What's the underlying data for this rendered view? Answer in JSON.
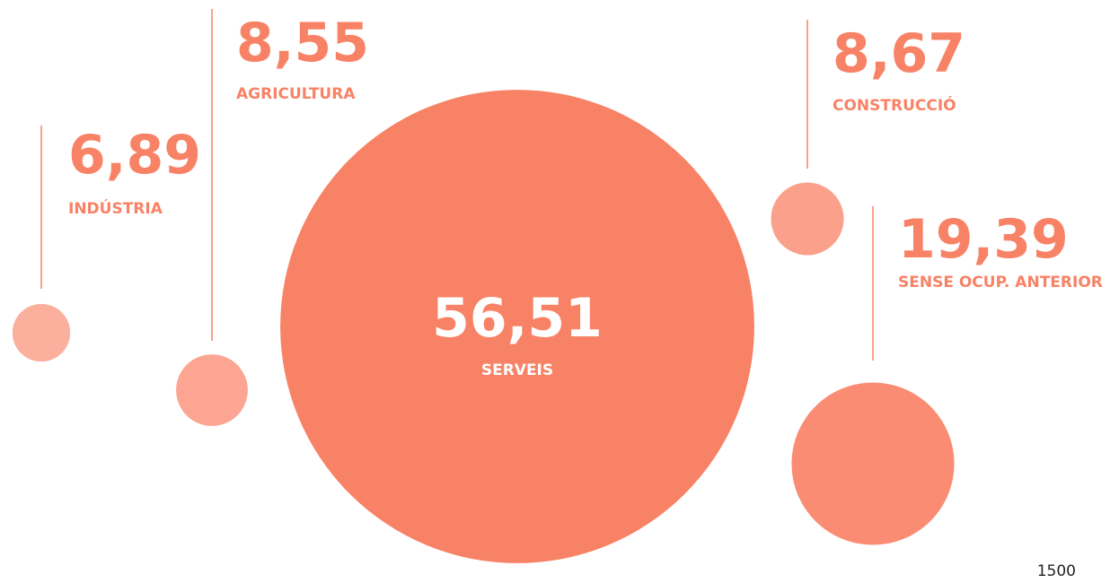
{
  "chart_data": {
    "type": "bubble",
    "categories": [
      "INDÚSTRIA",
      "AGRICULTURA",
      "SERVEIS",
      "CONSTRUCCIÓ",
      "SENSE OCUP. ANTERIOR"
    ],
    "values": [
      6.89,
      8.55,
      56.51,
      8.67,
      19.39
    ],
    "value_labels": [
      "6,89",
      "8,55",
      "56,51",
      "8,67",
      "19,39"
    ],
    "colors": [
      "#fbb09e",
      "#fba592",
      "#f88266",
      "#fba08b",
      "#f98c72"
    ],
    "caption": "1500"
  }
}
